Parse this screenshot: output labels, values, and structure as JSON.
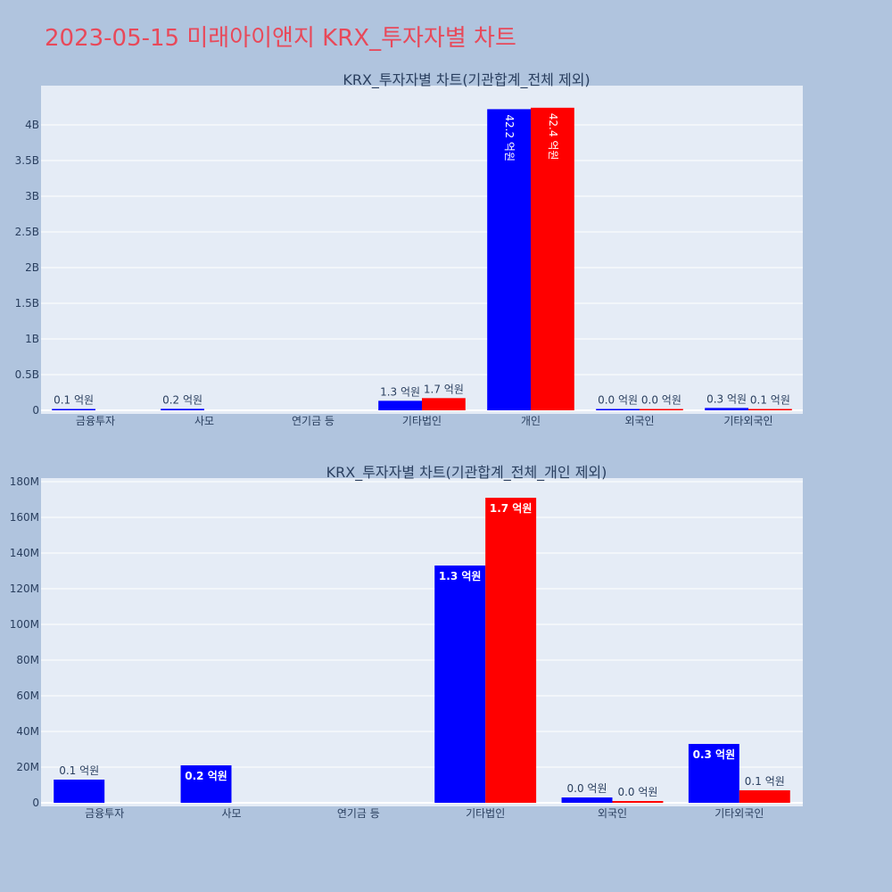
{
  "page": {
    "title": "2023-05-15 미래아이앤지 KRX_투자자별 차트"
  },
  "colors": {
    "background": "#b0c4de",
    "plot_bg": "#e5ecf6",
    "series1": "#0000ff",
    "series2": "#ff0000",
    "title": "#e8495a"
  },
  "chart_data": [
    {
      "type": "bar",
      "title": "KRX_투자자별 차트(기관합계_전체 제외)",
      "categories": [
        "금융투자",
        "사모",
        "연기금 등",
        "기타법인",
        "개인",
        "외국인",
        "기타외국인"
      ],
      "ylim": [
        0,
        4500000000
      ],
      "yticks": [
        0,
        500000000,
        1000000000,
        1500000000,
        2000000000,
        2500000000,
        3000000000,
        3500000000,
        4000000000
      ],
      "ytick_labels": [
        "0",
        "0.5B",
        "1B",
        "1.5B",
        "2B",
        "2.5B",
        "3B",
        "3.5B",
        "4B"
      ],
      "series": [
        {
          "color": "#0000ff",
          "values": [
            13000000,
            21000000,
            null,
            133000000,
            4220000000,
            3000000,
            33000000
          ],
          "labels": [
            "0.1 억원",
            "0.2 억원",
            "",
            "1.3 억원",
            "42.2 억원",
            "0.0 억원",
            "0.3 억원"
          ]
        },
        {
          "color": "#ff0000",
          "values": [
            null,
            null,
            null,
            171000000,
            4240000000,
            1000000,
            7000000
          ],
          "labels": [
            "",
            "",
            "",
            "1.7 억원",
            "42.4 억원",
            "0.0 억원",
            "0.1 억원"
          ]
        }
      ],
      "grid": true
    },
    {
      "type": "bar",
      "title": "KRX_투자자별 차트(기관합계_전체_개인 제외)",
      "categories": [
        "금융투자",
        "사모",
        "연기금 등",
        "기타법인",
        "외국인",
        "기타외국인"
      ],
      "ylim": [
        0,
        180000000
      ],
      "yticks": [
        0,
        20000000,
        40000000,
        60000000,
        80000000,
        100000000,
        120000000,
        140000000,
        160000000,
        180000000
      ],
      "ytick_labels": [
        "0",
        "20M",
        "40M",
        "60M",
        "80M",
        "100M",
        "120M",
        "140M",
        "160M",
        "180M"
      ],
      "series": [
        {
          "color": "#0000ff",
          "values": [
            13000000,
            21000000,
            null,
            133000000,
            3000000,
            33000000
          ],
          "labels": [
            "0.1 억원",
            "0.2 억원",
            "",
            "1.3 억원",
            "0.0 억원",
            "0.3 억원"
          ]
        },
        {
          "color": "#ff0000",
          "values": [
            null,
            null,
            null,
            171000000,
            1000000,
            7000000
          ],
          "labels": [
            "",
            "",
            "",
            "1.7 억원",
            "0.0 억원",
            "0.1 억원"
          ]
        }
      ],
      "grid": true
    }
  ]
}
